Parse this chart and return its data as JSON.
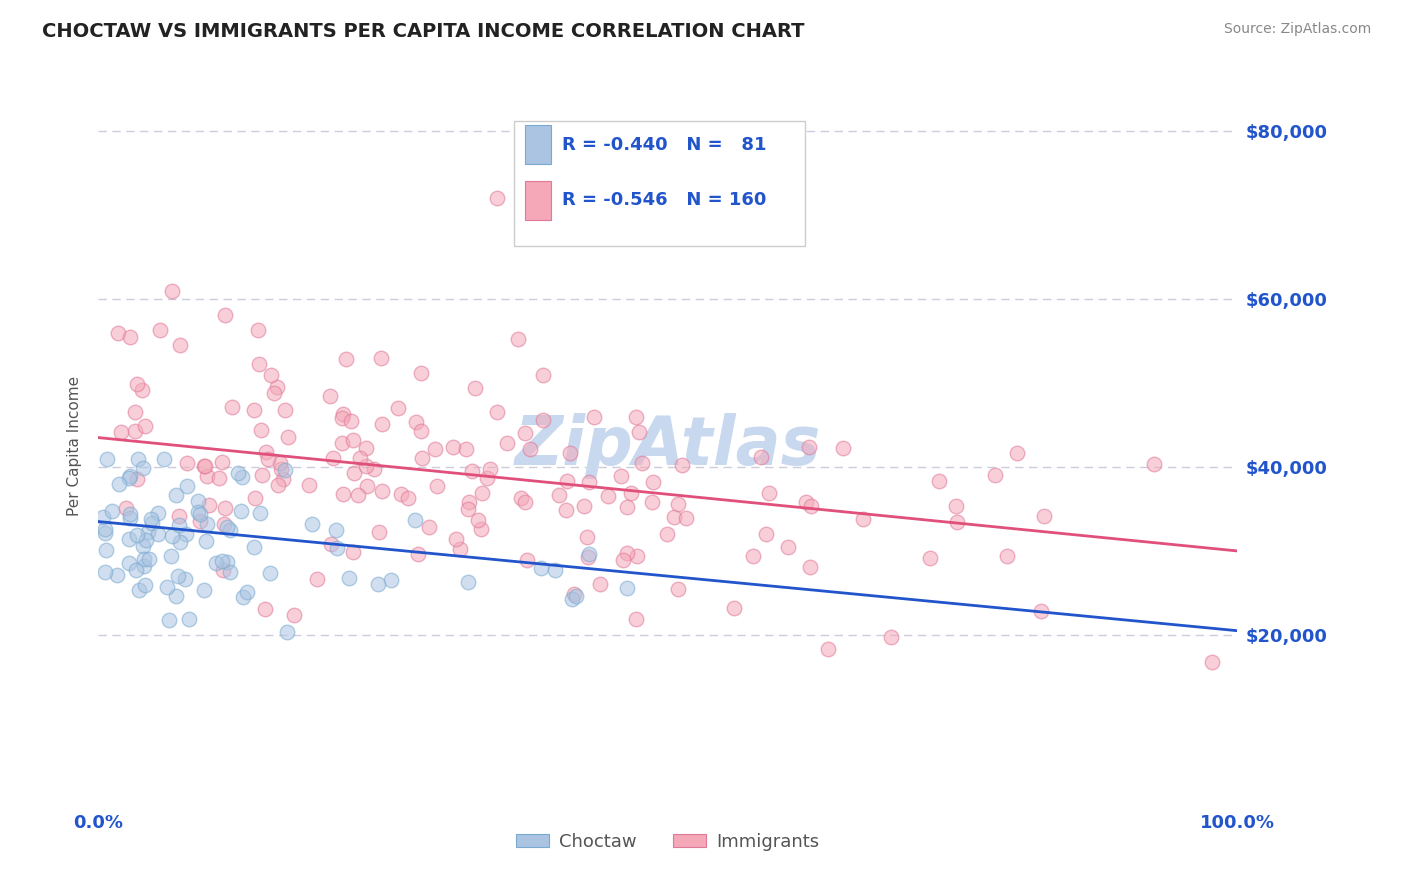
{
  "title": "CHOCTAW VS IMMIGRANTS PER CAPITA INCOME CORRELATION CHART",
  "source_text": "Source: ZipAtlas.com",
  "ylabel": "Per Capita Income",
  "xlim": [
    0.0,
    1.0
  ],
  "ylim": [
    0,
    85000
  ],
  "yticks": [
    0,
    20000,
    40000,
    60000,
    80000
  ],
  "ytick_labels": [
    "",
    "$20,000",
    "$40,000",
    "$60,000",
    "$80,000"
  ],
  "choctaw_color": "#aac4e2",
  "choctaw_edge_color": "#7aaad0",
  "immigrants_color": "#f4a8b8",
  "immigrants_edge_color": "#e07898",
  "choctaw_line_color": "#2255cc",
  "immigrants_line_color": "#e0507a",
  "title_color": "#222222",
  "axis_label_color": "#2255cc",
  "legend_text_color": "#2255cc",
  "background_color": "#ffffff",
  "grid_color": "#ccccdd",
  "watermark_color": "#c8d8ef",
  "choctaw_R": -0.44,
  "choctaw_N": 81,
  "immigrants_R": -0.546,
  "immigrants_N": 160,
  "choctaw_line_y0": 33500,
  "choctaw_line_y1": 20500,
  "immigrants_line_y0": 43500,
  "immigrants_line_y1": 30000,
  "marker_size": 110,
  "marker_alpha": 0.55,
  "marker_lw": 1.0
}
